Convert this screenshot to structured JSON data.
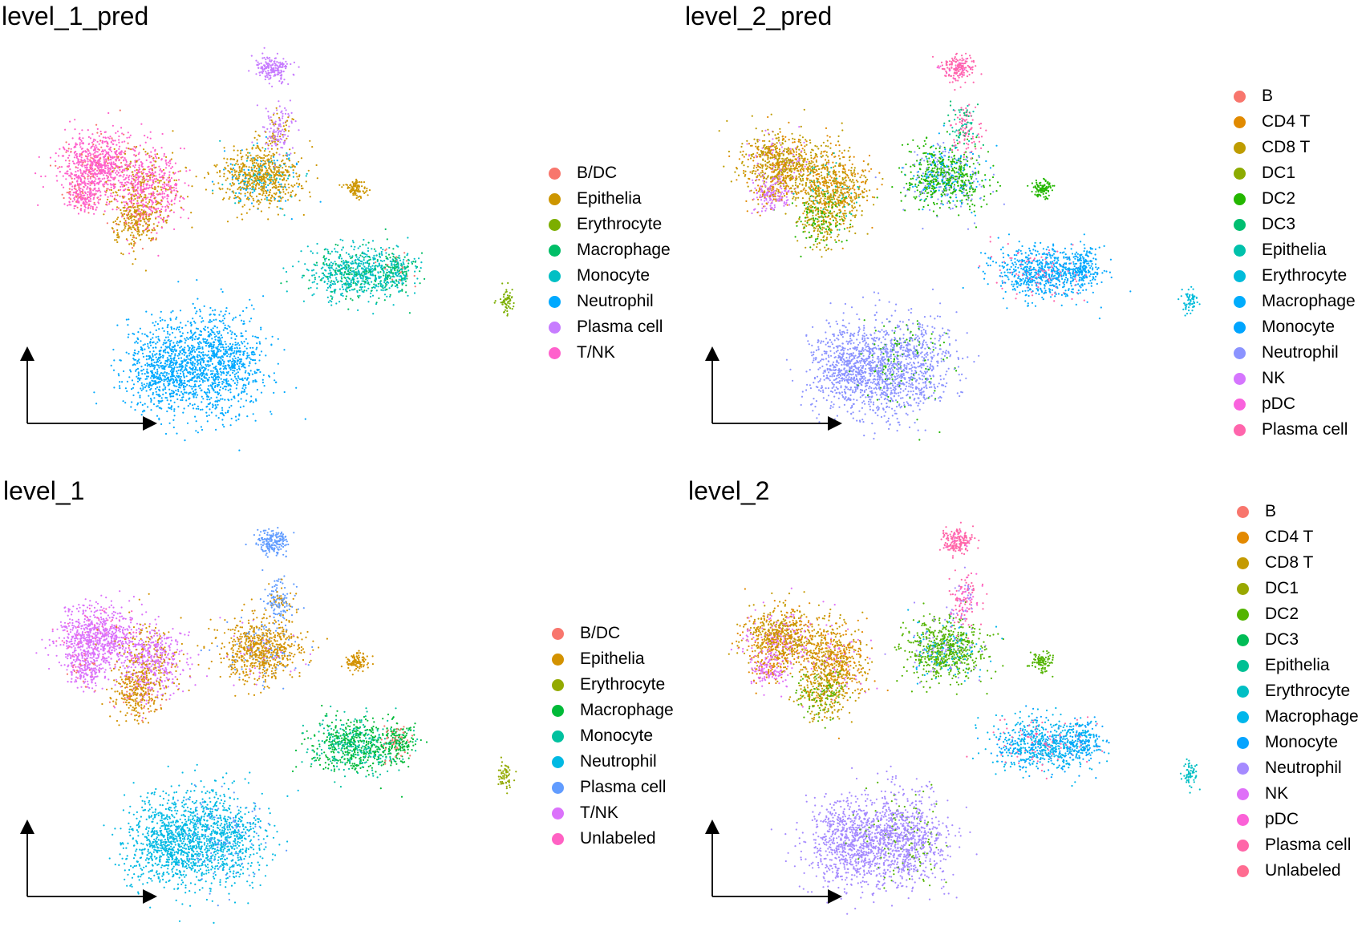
{
  "panels": [
    {
      "title": "level_1_pred",
      "legend": [
        {
          "label": "B/DC",
          "color": "#F8766D"
        },
        {
          "label": "Epithelia",
          "color": "#CD9600"
        },
        {
          "label": "Erythrocyte",
          "color": "#7CAE00"
        },
        {
          "label": "Macrophage",
          "color": "#00BE67"
        },
        {
          "label": "Monocyte",
          "color": "#00BFC4"
        },
        {
          "label": "Neutrophil",
          "color": "#00A9FF"
        },
        {
          "label": "Plasma cell",
          "color": "#C77CFF"
        },
        {
          "label": "T/NK",
          "color": "#FF61CC"
        }
      ]
    },
    {
      "title": "level_2_pred",
      "legend": [
        {
          "label": "B",
          "color": "#F8766D"
        },
        {
          "label": "CD4 T",
          "color": "#E18A00"
        },
        {
          "label": "CD8 T",
          "color": "#BE9C00"
        },
        {
          "label": "DC1",
          "color": "#8CAB00"
        },
        {
          "label": "DC2",
          "color": "#24B700"
        },
        {
          "label": "DC3",
          "color": "#00BE70"
        },
        {
          "label": "Epithelia",
          "color": "#00C1AB"
        },
        {
          "label": "Erythrocyte",
          "color": "#00BBDA"
        },
        {
          "label": "Macrophage",
          "color": "#00ACFC"
        },
        {
          "label": "Monocyte",
          "color": "#00A5FF"
        },
        {
          "label": "Neutrophil",
          "color": "#8B93FF"
        },
        {
          "label": "NK",
          "color": "#D575FE"
        },
        {
          "label": "pDC",
          "color": "#F962DD"
        },
        {
          "label": "Plasma cell",
          "color": "#FF65AC"
        }
      ]
    },
    {
      "title": "level_1",
      "legend": [
        {
          "label": "B/DC",
          "color": "#F8766D"
        },
        {
          "label": "Epithelia",
          "color": "#D39200"
        },
        {
          "label": "Erythrocyte",
          "color": "#93AA00"
        },
        {
          "label": "Macrophage",
          "color": "#00BA38"
        },
        {
          "label": "Monocyte",
          "color": "#00C19F"
        },
        {
          "label": "Neutrophil",
          "color": "#00B9E3"
        },
        {
          "label": "Plasma cell",
          "color": "#619CFF"
        },
        {
          "label": "T/NK",
          "color": "#DB72FB"
        },
        {
          "label": "Unlabeled",
          "color": "#FF61C3"
        }
      ]
    },
    {
      "title": "level_2",
      "legend": [
        {
          "label": "B",
          "color": "#F8766D"
        },
        {
          "label": "CD4 T",
          "color": "#E38900"
        },
        {
          "label": "CD8 T",
          "color": "#C49A00"
        },
        {
          "label": "DC1",
          "color": "#99A800"
        },
        {
          "label": "DC2",
          "color": "#53B400"
        },
        {
          "label": "DC3",
          "color": "#00BC56"
        },
        {
          "label": "Epithelia",
          "color": "#00C094"
        },
        {
          "label": "Erythrocyte",
          "color": "#00BFC4"
        },
        {
          "label": "Macrophage",
          "color": "#00B6EB"
        },
        {
          "label": "Monocyte",
          "color": "#06A4FF"
        },
        {
          "label": "Neutrophil",
          "color": "#A58AFF"
        },
        {
          "label": "NK",
          "color": "#DF70F8"
        },
        {
          "label": "pDC",
          "color": "#FB61D7"
        },
        {
          "label": "Plasma cell",
          "color": "#FF66A8"
        },
        {
          "label": "Unlabeled",
          "color": "#FF6C91"
        }
      ]
    }
  ],
  "chart_data": [
    {
      "type": "scatter",
      "title": "level_1_pred",
      "xlabel": "",
      "ylabel": "",
      "series": [
        {
          "name": "B/DC"
        },
        {
          "name": "Epithelia"
        },
        {
          "name": "Erythrocyte"
        },
        {
          "name": "Macrophage"
        },
        {
          "name": "Monocyte"
        },
        {
          "name": "Neutrophil"
        },
        {
          "name": "Plasma cell"
        },
        {
          "name": "T/NK"
        }
      ],
      "clusters": [
        {
          "label": "T/NK",
          "x": 0.16,
          "y": 0.7,
          "share": "T/NK 0.55, Epithelia 0.35, B/DC 0.10"
        },
        {
          "label": "Epithelia",
          "x": 0.39,
          "y": 0.66,
          "share": "Epithelia 0.75, Neutrophil 0.15, Plasma cell 0.10"
        },
        {
          "label": "Plasma cell",
          "x": 0.4,
          "y": 0.95,
          "share": "Plasma cell 1.00"
        },
        {
          "label": "Monocyte",
          "x": 0.54,
          "y": 0.38,
          "share": "Monocyte 0.75, Macrophage 0.25"
        },
        {
          "label": "Erythrocyte",
          "x": 0.81,
          "y": 0.33,
          "share": "Erythrocyte 1.00"
        },
        {
          "label": "Neutrophil",
          "x": 0.3,
          "y": 0.12,
          "share": "Neutrophil 1.00"
        }
      ],
      "axes_shown": false,
      "grid": false,
      "legend": "right"
    },
    {
      "type": "scatter",
      "title": "level_2_pred",
      "xlabel": "",
      "ylabel": "",
      "series": [
        {
          "name": "B"
        },
        {
          "name": "CD4 T"
        },
        {
          "name": "CD8 T"
        },
        {
          "name": "DC1"
        },
        {
          "name": "DC2"
        },
        {
          "name": "DC3"
        },
        {
          "name": "Epithelia"
        },
        {
          "name": "Erythrocyte"
        },
        {
          "name": "Macrophage"
        },
        {
          "name": "Monocyte"
        },
        {
          "name": "Neutrophil"
        },
        {
          "name": "NK"
        },
        {
          "name": "pDC"
        },
        {
          "name": "Plasma cell"
        }
      ],
      "axes_shown": false,
      "grid": false,
      "legend": "right"
    },
    {
      "type": "scatter",
      "title": "level_1",
      "xlabel": "",
      "ylabel": "",
      "series": [
        {
          "name": "B/DC"
        },
        {
          "name": "Epithelia"
        },
        {
          "name": "Erythrocyte"
        },
        {
          "name": "Macrophage"
        },
        {
          "name": "Monocyte"
        },
        {
          "name": "Neutrophil"
        },
        {
          "name": "Plasma cell"
        },
        {
          "name": "T/NK"
        },
        {
          "name": "Unlabeled"
        }
      ],
      "axes_shown": false,
      "grid": false,
      "legend": "right"
    },
    {
      "type": "scatter",
      "title": "level_2",
      "xlabel": "",
      "ylabel": "",
      "series": [
        {
          "name": "B"
        },
        {
          "name": "CD4 T"
        },
        {
          "name": "CD8 T"
        },
        {
          "name": "DC1"
        },
        {
          "name": "DC2"
        },
        {
          "name": "DC3"
        },
        {
          "name": "Epithelia"
        },
        {
          "name": "Erythrocyte"
        },
        {
          "name": "Macrophage"
        },
        {
          "name": "Monocyte"
        },
        {
          "name": "Neutrophil"
        },
        {
          "name": "NK"
        },
        {
          "name": "pDC"
        },
        {
          "name": "Plasma cell"
        },
        {
          "name": "Unlabeled"
        }
      ],
      "axes_shown": false,
      "grid": false,
      "legend": "right"
    }
  ]
}
